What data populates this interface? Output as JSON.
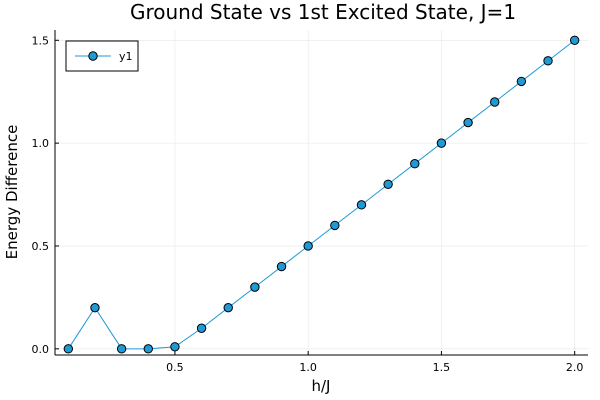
{
  "chart_data": {
    "type": "line",
    "title": "Ground State vs 1st Excited State, J=1",
    "xlabel": "h/J",
    "ylabel": "Energy Difference",
    "xlim": [
      0.05,
      2.05
    ],
    "ylim": [
      -0.03,
      1.55
    ],
    "xticks": [
      0.5,
      1.0,
      1.5,
      2.0
    ],
    "xtick_labels": [
      "0.5",
      "1.0",
      "1.5",
      "2.0"
    ],
    "yticks": [
      0.0,
      0.5,
      1.0,
      1.5
    ],
    "ytick_labels": [
      "0.0",
      "0.5",
      "1.0",
      "1.5"
    ],
    "grid": true,
    "legend_position": "top-left",
    "series": [
      {
        "name": "y1",
        "color": "#1f9ad6",
        "marker": "circle",
        "x": [
          0.1,
          0.2,
          0.3,
          0.4,
          0.5,
          0.6,
          0.7,
          0.8,
          0.9,
          1.0,
          1.1,
          1.2,
          1.3,
          1.4,
          1.5,
          1.6,
          1.7,
          1.8,
          1.9,
          2.0
        ],
        "y": [
          0.0,
          0.2,
          0.0,
          0.0,
          0.01,
          0.1,
          0.2,
          0.3,
          0.4,
          0.5,
          0.6,
          0.7,
          0.8,
          0.9,
          1.0,
          1.1,
          1.2,
          1.3,
          1.4,
          1.5
        ]
      }
    ]
  }
}
